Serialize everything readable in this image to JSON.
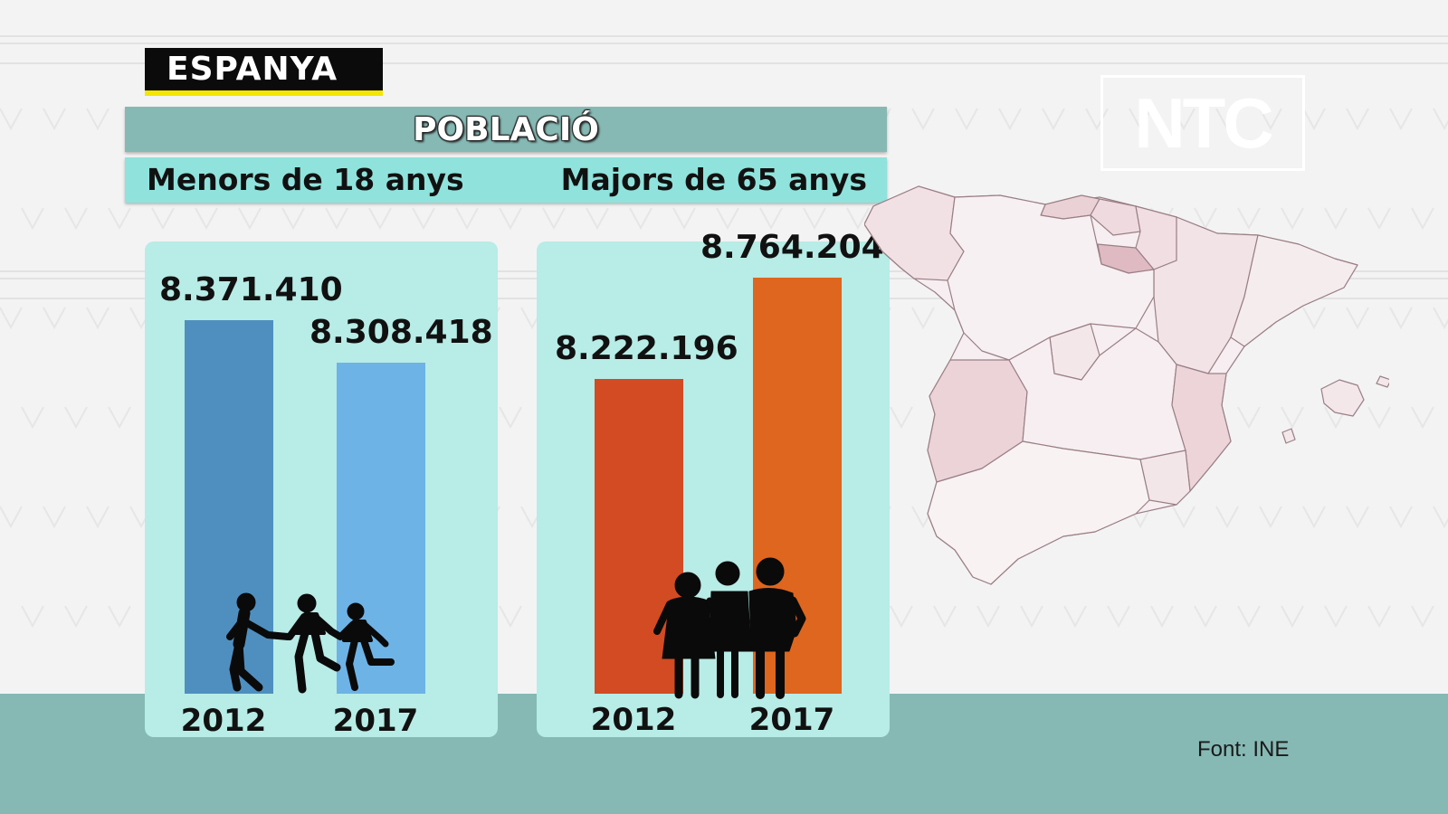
{
  "country_label": "ESPANYA",
  "title": "POBLACIÓ",
  "groups": {
    "left_label": "Menors de 18 anys",
    "right_label": "Majors de 65 anys"
  },
  "logo": "NTC",
  "source": "Font: INE",
  "colors": {
    "minors_2012": "#4f8fc0",
    "minors_2017": "#6db3e6",
    "seniors_2012": "#d24b22",
    "seniors_2017": "#de661e",
    "panel": "#b8ece6",
    "band": "#86b9b4",
    "subtitle_band": "#8fe3dc"
  },
  "icons": {
    "minors": "children-running-icon",
    "seniors": "elderly-people-icon",
    "map": "spain-map"
  },
  "chart_data": [
    {
      "type": "bar",
      "categories": [
        "2012",
        "2017"
      ],
      "values": [
        8371410,
        8308418
      ],
      "value_labels": [
        "8.371.410",
        "8.308.418"
      ],
      "title": "Menors de 18 anys",
      "ylim": [
        0,
        9000000
      ],
      "grid": false
    },
    {
      "type": "bar",
      "categories": [
        "2012",
        "2017"
      ],
      "values": [
        8222196,
        8764204
      ],
      "value_labels": [
        "8.222.196",
        "8.764.204"
      ],
      "title": "Majors de 65 anys",
      "ylim": [
        0,
        9000000
      ],
      "grid": false
    }
  ]
}
